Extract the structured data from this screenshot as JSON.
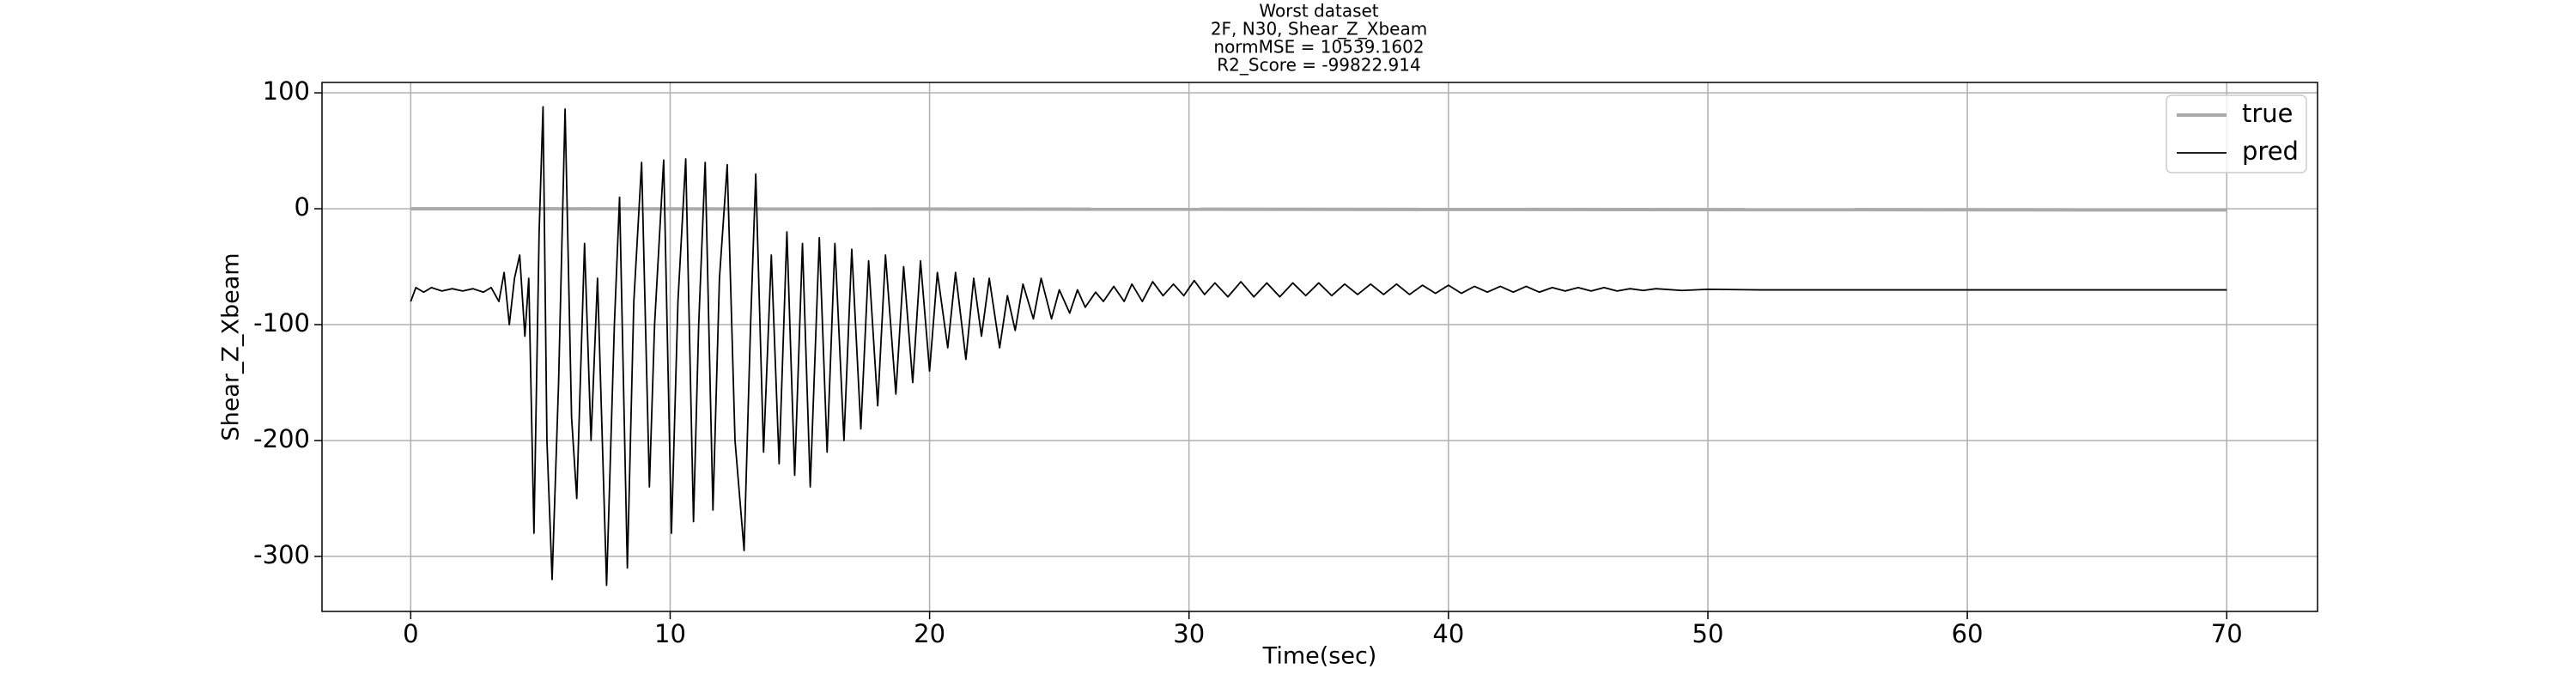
{
  "chart_data": {
    "type": "line",
    "title": [
      "Worst dataset",
      "2F, N30, Shear_Z_Xbeam",
      "normMSE = 10539.1602",
      "R2_Score = -99822.914"
    ],
    "xlabel": "Time(sec)",
    "ylabel": "Shear_Z_Xbeam",
    "xlim": [
      -3.42,
      73.5
    ],
    "ylim": [
      -347.5,
      109
    ],
    "xticks": [
      0,
      10,
      20,
      30,
      40,
      50,
      60,
      70
    ],
    "yticks": [
      -300,
      -200,
      -100,
      0,
      100
    ],
    "grid": true,
    "legend": "upper right",
    "series": [
      {
        "name": "true",
        "color": "#aaaaaa",
        "x": [
          0,
          70
        ],
        "values": [
          0,
          -1
        ]
      },
      {
        "name": "pred",
        "color": "#000000",
        "x": [
          0,
          0.2,
          0.5,
          0.8,
          1.2,
          1.6,
          2.0,
          2.4,
          2.8,
          3.1,
          3.4,
          3.6,
          3.8,
          4.0,
          4.2,
          4.4,
          4.55,
          4.75,
          4.95,
          5.1,
          5.25,
          5.45,
          5.7,
          5.95,
          6.2,
          6.4,
          6.7,
          6.95,
          7.2,
          7.55,
          7.85,
          8.05,
          8.35,
          8.6,
          8.9,
          9.2,
          9.4,
          9.75,
          10.05,
          10.3,
          10.6,
          10.9,
          11.1,
          11.35,
          11.65,
          11.9,
          12.2,
          12.5,
          12.85,
          13.1,
          13.3,
          13.6,
          13.9,
          14.2,
          14.5,
          14.8,
          15.1,
          15.4,
          15.75,
          16.05,
          16.35,
          16.7,
          17.0,
          17.35,
          17.65,
          18.0,
          18.3,
          18.7,
          19.0,
          19.35,
          19.65,
          20.0,
          20.3,
          20.7,
          21.0,
          21.4,
          21.7,
          22.0,
          22.3,
          22.7,
          23.0,
          23.3,
          23.6,
          24.0,
          24.3,
          24.7,
          25.0,
          25.4,
          25.7,
          26.0,
          26.4,
          26.7,
          27.1,
          27.5,
          27.8,
          28.2,
          28.6,
          29.0,
          29.4,
          29.8,
          30.2,
          30.6,
          31.0,
          31.5,
          32,
          32.5,
          33,
          33.5,
          34,
          34.5,
          35,
          35.5,
          36,
          36.5,
          37,
          37.5,
          38,
          38.5,
          39,
          39.5,
          40,
          40.5,
          41,
          41.5,
          42,
          42.5,
          43,
          43.5,
          44,
          44.5,
          45,
          45.5,
          46,
          46.5,
          47,
          47.5,
          48,
          49,
          50,
          52,
          55,
          60,
          65,
          70
        ],
        "values": [
          -80,
          -68,
          -72,
          -68,
          -71,
          -69,
          -71,
          -69,
          -72,
          -68,
          -80,
          -55,
          -100,
          -60,
          -40,
          -110,
          -60,
          -280,
          -20,
          88,
          -200,
          -320,
          -150,
          86,
          -180,
          -250,
          -30,
          -200,
          -60,
          -325,
          -100,
          10,
          -310,
          -80,
          40,
          -240,
          -100,
          42,
          -280,
          -80,
          43,
          -270,
          -100,
          40,
          -260,
          -60,
          38,
          -200,
          -295,
          -100,
          30,
          -210,
          -40,
          -220,
          -20,
          -230,
          -30,
          -240,
          -25,
          -210,
          -30,
          -200,
          -35,
          -190,
          -45,
          -170,
          -40,
          -160,
          -50,
          -150,
          -45,
          -140,
          -55,
          -120,
          -55,
          -130,
          -60,
          -110,
          -60,
          -120,
          -75,
          -105,
          -65,
          -95,
          -60,
          -95,
          -70,
          -90,
          -70,
          -85,
          -72,
          -80,
          -67,
          -80,
          -65,
          -80,
          -63,
          -75,
          -65,
          -75,
          -62,
          -74,
          -64,
          -76,
          -63,
          -76,
          -64,
          -76,
          -64,
          -75,
          -64,
          -75,
          -65,
          -74,
          -65,
          -74,
          -65,
          -74,
          -66,
          -73,
          -66,
          -73,
          -67,
          -72,
          -67,
          -72,
          -67,
          -72,
          -68,
          -71,
          -68,
          -71,
          -68,
          -71,
          -69,
          -70.5,
          -69,
          -70.5,
          -69.5,
          -70,
          -70,
          -70,
          -70,
          -70
        ]
      }
    ]
  }
}
